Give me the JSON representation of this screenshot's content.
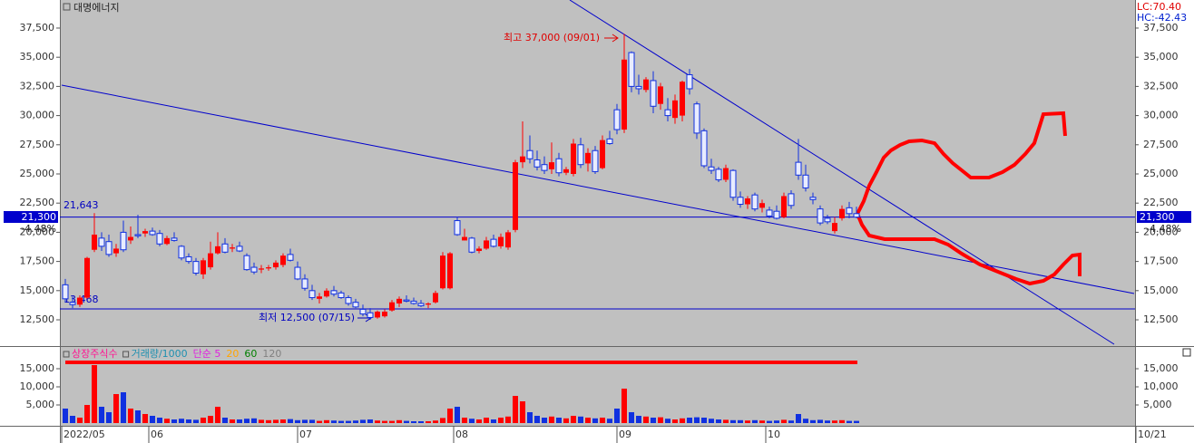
{
  "chart_data": {
    "type": "candlestick",
    "title": "대명에너지",
    "top_right": [
      "LC:70.40",
      "HC:-42.43"
    ],
    "range_labels": [
      "21,643",
      "13,468"
    ],
    "current_price": {
      "value": 21300,
      "label": "21,300"
    },
    "change": "-4.48%",
    "annotations": [
      "최고 37,000 (09/01)",
      "최저 12,500 (07/15)"
    ],
    "up_color": "#ff0000",
    "down_color": "#1030e0",
    "categories": [
      null,
      null,
      null,
      null,
      null,
      null,
      null,
      null,
      null,
      null,
      null,
      null,
      null,
      null,
      null,
      null,
      null,
      null,
      null,
      null,
      null,
      null,
      null,
      null,
      null,
      null,
      null,
      null,
      null,
      null,
      null,
      null,
      null,
      null,
      null,
      null,
      null,
      null,
      null,
      null,
      null,
      null,
      null,
      null,
      null,
      null,
      null,
      null,
      null,
      null,
      null,
      null,
      null,
      null,
      null,
      null,
      null,
      null,
      null,
      null,
      null,
      null,
      null,
      null,
      null,
      null,
      null,
      null,
      null,
      null,
      null,
      null,
      null,
      null,
      null,
      null,
      null,
      null,
      null,
      null,
      null,
      null,
      null,
      null,
      null,
      null,
      null,
      null,
      null,
      null,
      null,
      null,
      null,
      null,
      null,
      null,
      null,
      null,
      null,
      null,
      null,
      null,
      null,
      null,
      null,
      null,
      null,
      null,
      null,
      null
    ],
    "open": [
      15500,
      14000,
      13800,
      14400,
      18500,
      19500,
      19200,
      18200,
      20000,
      19300,
      19800,
      19900,
      20100,
      19900,
      19000,
      19500,
      18800,
      17900,
      17500,
      16400,
      17000,
      18200,
      19000,
      18600,
      18800,
      18000,
      17000,
      16800,
      16900,
      17000,
      17200,
      18100,
      17000,
      16000,
      15000,
      14300,
      14500,
      15000,
      14800,
      14400,
      14000,
      13400,
      13100,
      12700,
      12800,
      13300,
      13900,
      14200,
      14100,
      13900,
      13800,
      14000,
      15200,
      15200,
      21000,
      19300,
      19500,
      18400,
      18600,
      19400,
      18800,
      18700,
      20200,
      26000,
      27000,
      26200,
      25800,
      25400,
      26300,
      25100,
      25000,
      27500,
      25900,
      27000,
      25500,
      28000,
      30500,
      28800,
      35400,
      32500,
      32200,
      33000,
      31000,
      30500,
      29800,
      30000,
      33500,
      31000,
      28700,
      25600,
      25400,
      24500,
      25300,
      23000,
      22400,
      23200,
      22100,
      21900,
      21800,
      21300,
      23300,
      26000,
      24900,
      23000,
      22000,
      21200,
      20100,
      21200,
      22100,
      21600
    ],
    "high": [
      16000,
      14500,
      14600,
      17900,
      21643,
      20000,
      19800,
      19000,
      21000,
      20500,
      21500,
      20300,
      20400,
      20200,
      19700,
      20000,
      18900,
      18200,
      17800,
      17800,
      19200,
      20000,
      19500,
      19000,
      19200,
      18200,
      17400,
      17200,
      17200,
      17600,
      18200,
      18600,
      17500,
      16400,
      15500,
      14800,
      15200,
      15400,
      15000,
      14600,
      14300,
      13800,
      13500,
      13300,
      13400,
      14200,
      14500,
      14600,
      14400,
      14200,
      14000,
      15000,
      18300,
      18300,
      21300,
      20300,
      19600,
      18800,
      19600,
      19800,
      19900,
      20200,
      26200,
      29500,
      28300,
      27000,
      26500,
      27700,
      26800,
      25600,
      28000,
      28100,
      27200,
      27400,
      28300,
      28700,
      31000,
      37000,
      35500,
      33500,
      33300,
      33800,
      32800,
      31500,
      31800,
      33000,
      34000,
      31200,
      28900,
      26300,
      25600,
      25800,
      25400,
      23500,
      23100,
      23400,
      22800,
      22200,
      22300,
      23400,
      23600,
      28000,
      25800,
      23400,
      22300,
      21500,
      21300,
      22300,
      22600,
      22200
    ],
    "low": [
      14000,
      13500,
      13600,
      14300,
      18300,
      18400,
      17900,
      17900,
      18300,
      19000,
      19500,
      19600,
      19700,
      18800,
      18900,
      19200,
      17600,
      17300,
      16300,
      16000,
      16800,
      18100,
      18200,
      18300,
      18300,
      16700,
      16400,
      16500,
      16700,
      16800,
      17000,
      17500,
      15900,
      15000,
      14200,
      13900,
      14400,
      14500,
      14300,
      13700,
      13500,
      12800,
      12500,
      12600,
      12700,
      13200,
      13600,
      14000,
      13800,
      13600,
      13500,
      13900,
      15100,
      15100,
      19700,
      19300,
      18200,
      18200,
      18500,
      18700,
      18600,
      18500,
      20000,
      25500,
      25900,
      25300,
      25000,
      25000,
      24800,
      24900,
      24800,
      25500,
      25200,
      25000,
      25400,
      27500,
      28400,
      28500,
      32000,
      31800,
      32000,
      30200,
      30500,
      29500,
      29300,
      29500,
      31800,
      28000,
      25500,
      25000,
      24300,
      24300,
      22700,
      22100,
      22000,
      21800,
      21700,
      21200,
      21100,
      21200,
      22000,
      24500,
      23500,
      22400,
      20600,
      20700,
      19900,
      21000,
      21200,
      21200
    ],
    "close": [
      14300,
      13800,
      14400,
      17800,
      19800,
      18800,
      18100,
      18600,
      18500,
      19600,
      19700,
      20100,
      19800,
      19000,
      19500,
      19300,
      17800,
      17500,
      16500,
      17600,
      18200,
      18800,
      18300,
      18700,
      18400,
      16800,
      16600,
      16900,
      17000,
      17400,
      18000,
      17600,
      16000,
      15200,
      14400,
      14500,
      15000,
      14700,
      14400,
      13900,
      13600,
      13000,
      12700,
      13200,
      13200,
      14000,
      14300,
      14100,
      13900,
      13700,
      13900,
      14800,
      18000,
      18200,
      19800,
      19600,
      18300,
      18600,
      19300,
      18800,
      19600,
      20000,
      26000,
      26500,
      26300,
      25600,
      25300,
      26000,
      25100,
      25400,
      27600,
      25800,
      26800,
      25200,
      27900,
      27600,
      28800,
      34800,
      32500,
      32300,
      33100,
      30800,
      32500,
      30000,
      31300,
      32900,
      32300,
      28500,
      25700,
      25300,
      24500,
      25500,
      23000,
      22400,
      22900,
      22000,
      22500,
      21400,
      21200,
      23100,
      22300,
      24900,
      23800,
      22800,
      20800,
      20900,
      20800,
      22000,
      21600,
      21300
    ],
    "xlim": [
      -0.5,
      147.25
    ],
    "xticks": [
      {
        "value": -0.5,
        "label": "2022/05"
      },
      {
        "value": 11.5,
        "label": "06"
      },
      {
        "value": 32,
        "label": "07"
      },
      {
        "value": 53.5,
        "label": "08"
      },
      {
        "value": 76,
        "label": "09"
      },
      {
        "value": 96.5,
        "label": "10"
      },
      {
        "value": 147.5,
        "label": "10/21"
      }
    ],
    "ylim": [
      10250,
      39905
    ],
    "yticks": [
      {
        "value": 12500,
        "label": "12,500"
      },
      {
        "value": 15000,
        "label": "15,000"
      },
      {
        "value": 17500,
        "label": "17,500"
      },
      {
        "value": 20000,
        "label": "20,000"
      },
      {
        "value": 22500,
        "label": "22,500"
      },
      {
        "value": 25000,
        "label": "25,000"
      },
      {
        "value": 27500,
        "label": "27,500"
      },
      {
        "value": 30000,
        "label": "30,000"
      },
      {
        "value": 32500,
        "label": "32,500"
      },
      {
        "value": 35000,
        "label": "35,000"
      },
      {
        "value": 37500,
        "label": "37,500"
      }
    ],
    "indicators": [
      {
        "name": "상장주식수",
        "color": "#ff1493"
      },
      {
        "name": "거래량/1000",
        "color": "#1e90b0"
      },
      {
        "name": "단순 5",
        "color": "#e020e0"
      },
      {
        "name": "20",
        "color": "#ffa500"
      },
      {
        "name": "60",
        "color": "#008000"
      },
      {
        "name": "120",
        "color": "#808080"
      }
    ],
    "volume": {
      "values": [
        4000,
        2000,
        1500,
        5000,
        16000,
        4500,
        3000,
        8000,
        8500,
        4000,
        3500,
        2500,
        2000,
        1500,
        1200,
        1000,
        1200,
        1000,
        900,
        1500,
        2000,
        4500,
        1500,
        1000,
        1000,
        1200,
        1300,
        900,
        800,
        900,
        1000,
        1100,
        800,
        900,
        900,
        600,
        800,
        700,
        600,
        600,
        700,
        900,
        1000,
        700,
        600,
        600,
        800,
        600,
        500,
        500,
        500,
        700,
        1400,
        4000,
        4500,
        1500,
        1200,
        1000,
        1500,
        1000,
        1500,
        1800,
        7500,
        6000,
        3000,
        2000,
        1500,
        1800,
        1500,
        1300,
        2000,
        1800,
        1500,
        1300,
        1500,
        1200,
        4000,
        9500,
        3000,
        2000,
        1800,
        1500,
        1600,
        1200,
        1000,
        1300,
        1500,
        1600,
        1500,
        1200,
        1000,
        900,
        800,
        800,
        700,
        800,
        700,
        600,
        700,
        900,
        700,
        2500,
        1200,
        800,
        900,
        700,
        700,
        800,
        600,
        600
      ],
      "ylim": [
        0,
        21000
      ],
      "yticks": [
        {
          "value": 5000,
          "label": "5,000"
        },
        {
          "value": 10000,
          "label": "10,000"
        },
        {
          "value": 15000,
          "label": "15,000"
        }
      ]
    }
  }
}
